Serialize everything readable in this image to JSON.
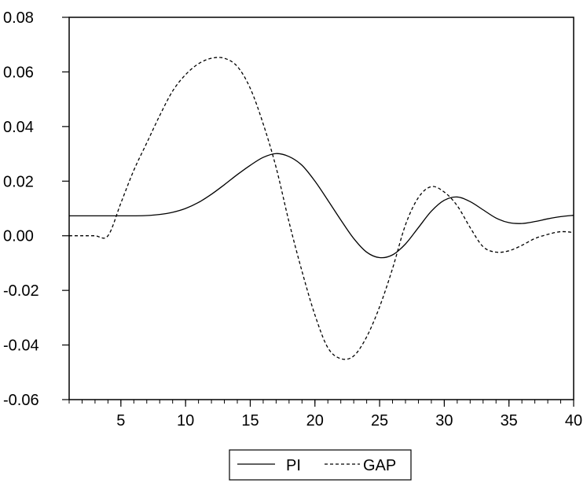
{
  "chart_data": {
    "type": "line",
    "title": "",
    "xlabel": "",
    "ylabel": "",
    "xlim": [
      1,
      40
    ],
    "ylim": [
      -0.06,
      0.08
    ],
    "x_ticks": [
      5,
      10,
      15,
      20,
      25,
      30,
      35,
      40
    ],
    "x_tick_labels": [
      "5",
      "10",
      "15",
      "20",
      "25",
      "30",
      "35",
      "40"
    ],
    "y_ticks": [
      -0.06,
      -0.04,
      -0.02,
      0.0,
      0.02,
      0.04,
      0.06,
      0.08
    ],
    "y_tick_labels": [
      "-0.06",
      "-0.04",
      "-0.02",
      "0.00",
      "0.02",
      "0.04",
      "0.06",
      "0.08"
    ],
    "grid": false,
    "legend_position": "bottom-center",
    "x": [
      1,
      2,
      3,
      4,
      5,
      6,
      7,
      8,
      9,
      10,
      11,
      12,
      13,
      14,
      15,
      16,
      17,
      18,
      19,
      20,
      21,
      22,
      23,
      24,
      25,
      26,
      27,
      28,
      29,
      30,
      31,
      32,
      33,
      34,
      35,
      36,
      37,
      38,
      39,
      40
    ],
    "series": [
      {
        "name": "PI",
        "style": "solid",
        "color": "#000000",
        "values": [
          0.0073,
          0.0073,
          0.0073,
          0.0073,
          0.0073,
          0.0073,
          0.0074,
          0.0078,
          0.0086,
          0.01,
          0.0122,
          0.0152,
          0.0187,
          0.0224,
          0.0258,
          0.0287,
          0.0301,
          0.029,
          0.0258,
          0.02,
          0.013,
          0.0058,
          -0.001,
          -0.006,
          -0.008,
          -0.007,
          -0.003,
          0.003,
          0.009,
          0.013,
          0.0142,
          0.0125,
          0.0095,
          0.0065,
          0.0048,
          0.0045,
          0.0052,
          0.0062,
          0.007,
          0.0075
        ]
      },
      {
        "name": "GAP",
        "style": "dashed",
        "color": "#000000",
        "values": [
          0.0,
          0.0,
          0.0,
          0.0,
          0.012,
          0.024,
          0.034,
          0.044,
          0.053,
          0.059,
          0.063,
          0.065,
          0.065,
          0.062,
          0.054,
          0.041,
          0.025,
          0.005,
          -0.013,
          -0.029,
          -0.041,
          -0.045,
          -0.044,
          -0.037,
          -0.026,
          -0.012,
          0.004,
          0.014,
          0.018,
          0.016,
          0.011,
          0.003,
          -0.004,
          -0.006,
          -0.0055,
          -0.0035,
          -0.001,
          0.0005,
          0.0015,
          0.0012
        ]
      }
    ]
  }
}
